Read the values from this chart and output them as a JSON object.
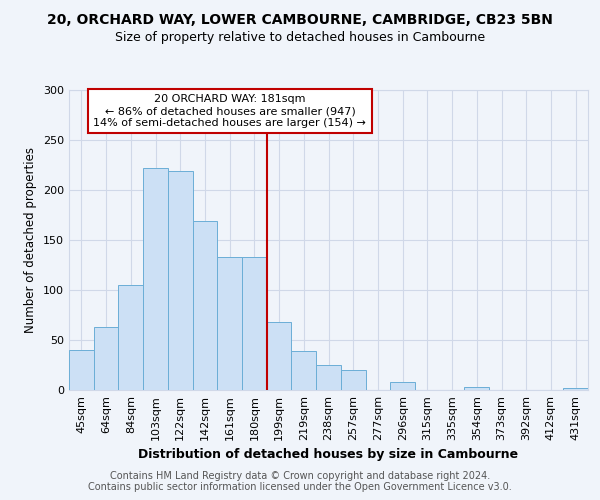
{
  "title1": "20, ORCHARD WAY, LOWER CAMBOURNE, CAMBRIDGE, CB23 5BN",
  "title2": "Size of property relative to detached houses in Cambourne",
  "xlabel": "Distribution of detached houses by size in Cambourne",
  "ylabel": "Number of detached properties",
  "categories": [
    "45sqm",
    "64sqm",
    "84sqm",
    "103sqm",
    "122sqm",
    "142sqm",
    "161sqm",
    "180sqm",
    "199sqm",
    "219sqm",
    "238sqm",
    "257sqm",
    "277sqm",
    "296sqm",
    "315sqm",
    "335sqm",
    "354sqm",
    "373sqm",
    "392sqm",
    "412sqm",
    "431sqm"
  ],
  "values": [
    40,
    63,
    105,
    222,
    219,
    169,
    133,
    133,
    68,
    39,
    25,
    20,
    0,
    8,
    0,
    0,
    3,
    0,
    0,
    0,
    2
  ],
  "bar_color": "#cce0f5",
  "bar_edge_color": "#6baed6",
  "vline_color": "#c00000",
  "annotation_text": "20 ORCHARD WAY: 181sqm\n← 86% of detached houses are smaller (947)\n14% of semi-detached houses are larger (154) →",
  "annotation_box_color": "#ffffff",
  "annotation_box_edge": "#c00000",
  "footer_text": "Contains HM Land Registry data © Crown copyright and database right 2024.\nContains public sector information licensed under the Open Government Licence v3.0.",
  "background_color": "#f0f4fa",
  "plot_bg_color": "#f0f4fa",
  "grid_color": "#d0d8e8",
  "ylim": [
    0,
    300
  ],
  "yticks": [
    0,
    50,
    100,
    150,
    200,
    250,
    300
  ],
  "title1_fontsize": 10,
  "title2_fontsize": 9,
  "xlabel_fontsize": 9,
  "ylabel_fontsize": 8.5,
  "tick_fontsize": 8,
  "annotation_fontsize": 8,
  "footer_fontsize": 7
}
